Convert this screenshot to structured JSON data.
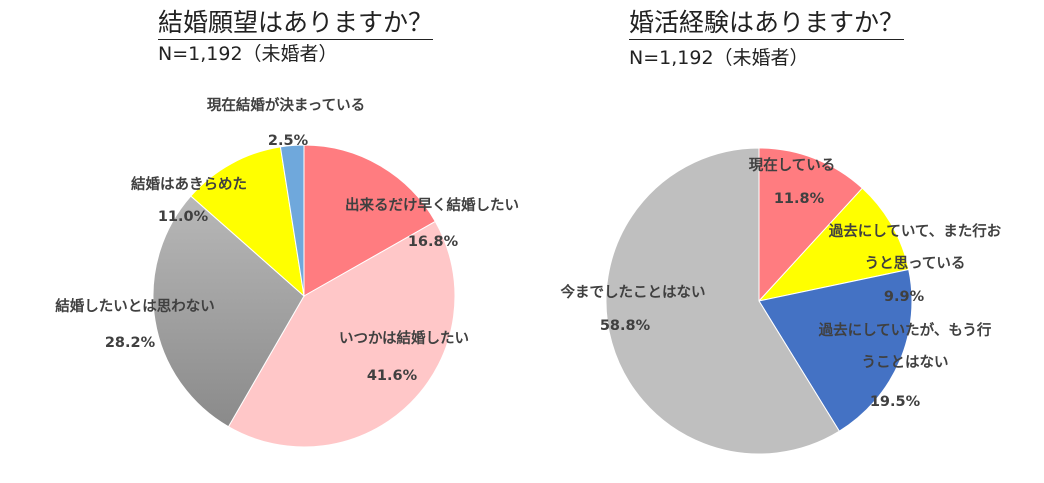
{
  "chart_data": [
    {
      "type": "pie",
      "title": "結婚願望はありますか？",
      "subtitle": "N=1,192（未婚者）",
      "slices": [
        {
          "label": "出来るだけ早く結婚したい",
          "value": 16.8,
          "value_label": "16.8%",
          "color": "#ff7c80"
        },
        {
          "label": "いつかは結婚したい",
          "value": 41.6,
          "value_label": "41.6%",
          "color": "#ffc7c8"
        },
        {
          "label": "結婚したいとは思わない",
          "value": 28.2,
          "value_label": "28.2%",
          "color": "#a6a6a6"
        },
        {
          "label": "結婚はあきらめた",
          "value": 11.0,
          "value_label": "11.0%",
          "color": "#ffff00"
        },
        {
          "label": "現在結婚が決まっている",
          "value": 2.5,
          "value_label": "2.5%",
          "color": "#6fa8dc"
        }
      ]
    },
    {
      "type": "pie",
      "title": "婚活経験はありますか？",
      "subtitle": "N=1,192（未婚者）",
      "slices": [
        {
          "label": "現在している",
          "value": 11.8,
          "value_label": "11.8%",
          "color": "#ff7c80"
        },
        {
          "label": "過去にしていて、また行おうと思っている",
          "label_lines": [
            "過去にしていて、また行お",
            "うと思っている"
          ],
          "value": 9.9,
          "value_label": "9.9%",
          "color": "#ffff00"
        },
        {
          "label": "過去にしていたが、もう行うことはない",
          "label_lines": [
            "過去にしていたが、もう行",
            "うことはない"
          ],
          "value": 19.5,
          "value_label": "19.5%",
          "color": "#4472c4"
        },
        {
          "label": "今までしたことはない",
          "value": 58.8,
          "value_label": "58.8%",
          "color": "#bfbfbf"
        }
      ]
    }
  ]
}
